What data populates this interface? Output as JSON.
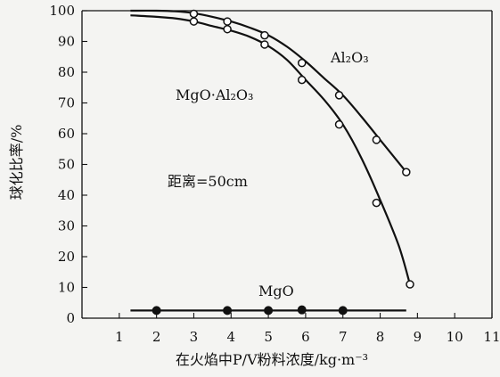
{
  "chart_data": {
    "type": "line",
    "title": "",
    "xlabel": "在火焰中P/V粉料浓度/kg·m⁻³",
    "ylabel": "球化比率/%",
    "xlim": [
      0,
      11
    ],
    "ylim": [
      0,
      100
    ],
    "xticks": [
      "1",
      "2",
      "3",
      "4",
      "5",
      "6",
      "7",
      "8",
      "9",
      "10",
      "11"
    ],
    "yticks": [
      "0",
      "10",
      "20",
      "30",
      "40",
      "50",
      "60",
      "70",
      "80",
      "90",
      "100"
    ],
    "grid": false,
    "annotation": "距离=50cm",
    "series": [
      {
        "name": "Al₂O₃",
        "marker": "open",
        "curve_x": [
          1.3,
          2.0,
          2.5,
          3.0,
          3.5,
          4.0,
          4.5,
          5.0,
          5.5,
          6.0,
          6.5,
          7.0,
          7.5,
          8.0,
          8.5,
          8.7
        ],
        "curve_y": [
          100.0,
          100.0,
          99.8,
          99.2,
          98.0,
          96.5,
          94.5,
          92.0,
          88.3,
          83.5,
          78.0,
          72.5,
          65.5,
          58.0,
          50.5,
          47.5
        ],
        "points_x": [
          3.0,
          3.9,
          4.9,
          5.9,
          6.9,
          7.9,
          8.7
        ],
        "points_y": [
          99.0,
          96.5,
          92.0,
          83.0,
          72.5,
          58.0,
          47.5
        ]
      },
      {
        "name": "MgO·Al₂O₃",
        "marker": "open",
        "curve_x": [
          1.3,
          2.0,
          2.5,
          3.0,
          3.5,
          4.0,
          4.5,
          5.0,
          5.5,
          6.0,
          6.5,
          7.0,
          7.5,
          8.0,
          8.5,
          8.8
        ],
        "curve_y": [
          98.5,
          98.0,
          97.5,
          96.5,
          95.0,
          93.5,
          91.5,
          88.5,
          84.0,
          77.5,
          71.0,
          63.0,
          52.0,
          38.5,
          23.5,
          11.0
        ],
        "points_x": [
          3.0,
          3.9,
          4.9,
          5.9,
          6.9,
          7.9,
          8.8
        ],
        "points_y": [
          96.5,
          94.0,
          89.0,
          77.5,
          63.0,
          37.5,
          11.0
        ]
      },
      {
        "name": "MgO",
        "marker": "filled",
        "curve_x": [
          1.3,
          8.7
        ],
        "curve_y": [
          2.5,
          2.5
        ],
        "points_x": [
          2.0,
          3.9,
          5.0,
          5.9,
          7.0
        ],
        "points_y": [
          2.5,
          2.5,
          2.5,
          2.7,
          2.5
        ]
      }
    ]
  }
}
